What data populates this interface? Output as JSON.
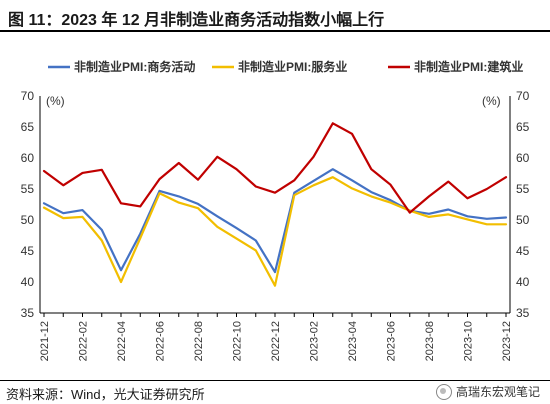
{
  "figure": {
    "title": "图 11：2023 年 12 月非制造业商务活动指数小幅上行",
    "source": "资料来源：Wind，光大证券研究所",
    "watermark": "高瑞东宏观笔记"
  },
  "chart_data": {
    "type": "line",
    "title": "",
    "xlabel": "",
    "ylabel_left": "(%)",
    "ylabel_right": "(%)",
    "ylim": [
      35,
      70
    ],
    "yticks": [
      35,
      40,
      45,
      50,
      55,
      60,
      65,
      70
    ],
    "grid": false,
    "legend_position": "top",
    "x": [
      "2021-12",
      "2022-01",
      "2022-02",
      "2022-03",
      "2022-04",
      "2022-05",
      "2022-06",
      "2022-07",
      "2022-08",
      "2022-09",
      "2022-10",
      "2022-11",
      "2022-12",
      "2023-01",
      "2023-02",
      "2023-03",
      "2023-04",
      "2023-05",
      "2023-06",
      "2023-07",
      "2023-08",
      "2023-09",
      "2023-10",
      "2023-11",
      "2023-12"
    ],
    "xtick_labels": [
      "2021-12",
      "2022-02",
      "2022-04",
      "2022-06",
      "2022-08",
      "2022-10",
      "2022-12",
      "2023-02",
      "2023-04",
      "2023-06",
      "2023-08",
      "2023-10",
      "2023-12"
    ],
    "series": [
      {
        "name": "非制造业PMI:商务活动",
        "color": "#4472C4",
        "values": [
          52.7,
          51.1,
          51.6,
          48.4,
          41.9,
          47.8,
          54.7,
          53.8,
          52.6,
          50.6,
          48.7,
          46.7,
          41.6,
          54.4,
          56.3,
          58.2,
          56.4,
          54.5,
          53.2,
          51.5,
          51.0,
          51.7,
          50.6,
          50.2,
          50.4
        ]
      },
      {
        "name": "非制造业PMI:服务业",
        "color": "#F2BE00",
        "values": [
          52.0,
          50.3,
          50.5,
          46.7,
          40.0,
          47.1,
          54.3,
          52.8,
          51.9,
          48.9,
          47.0,
          45.1,
          39.4,
          54.0,
          55.6,
          56.9,
          55.1,
          53.8,
          52.8,
          51.5,
          50.5,
          50.9,
          50.1,
          49.3,
          49.3
        ]
      },
      {
        "name": "非制造业PMI:建筑业",
        "color": "#C00000",
        "values": [
          57.9,
          55.6,
          57.6,
          58.1,
          52.7,
          52.2,
          56.6,
          59.2,
          56.5,
          60.2,
          58.2,
          55.4,
          54.4,
          56.4,
          60.2,
          65.6,
          63.9,
          58.2,
          55.7,
          51.2,
          53.8,
          56.2,
          53.5,
          55.0,
          56.9
        ]
      }
    ]
  }
}
